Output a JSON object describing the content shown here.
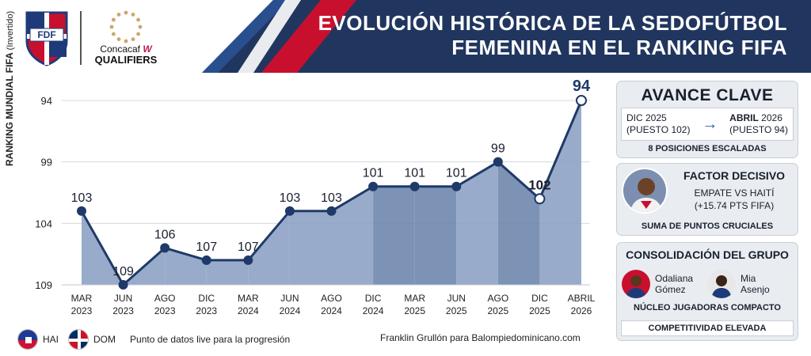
{
  "header": {
    "title_line1": "EVOLUCIÓN HISTÓRICA DE LA SEDOFÚTBOL",
    "title_line2": "FEMENINA EN EL RANKING FIFA",
    "logo_left_text": "FDF",
    "logo_right_name": "Concacaf",
    "logo_right_w": "W",
    "logo_right_sub": "QUALIFIERS"
  },
  "chart_data": {
    "type": "area",
    "ylabel": "RANKING MUNDIAL FIFA",
    "ylabel_note": "(Invertido)",
    "y_inverted": true,
    "ylim": [
      109,
      94
    ],
    "yticks": [
      94,
      99,
      104,
      109
    ],
    "categories": [
      {
        "month": "MAR",
        "year": "2023"
      },
      {
        "month": "JUN",
        "year": "2023"
      },
      {
        "month": "AGO",
        "year": "2023"
      },
      {
        "month": "DIC",
        "year": "2023"
      },
      {
        "month": "MAR",
        "year": "2024"
      },
      {
        "month": "JUN",
        "year": "2024"
      },
      {
        "month": "AGO",
        "year": "2024"
      },
      {
        "month": "DIC",
        "year": "2024"
      },
      {
        "month": "MAR",
        "year": "2025"
      },
      {
        "month": "JUN",
        "year": "2025"
      },
      {
        "month": "AGO",
        "year": "2025"
      },
      {
        "month": "DIC",
        "year": "2025"
      },
      {
        "month": "ABRIL",
        "year": "2026"
      }
    ],
    "values": [
      103,
      109,
      106,
      107,
      107,
      103,
      103,
      101,
      101,
      101,
      99,
      102,
      94
    ],
    "highlight_bold": [
      11,
      12
    ],
    "grid": true
  },
  "legend": {
    "hai_label": "HAI",
    "dom_label": "DOM",
    "note": "Punto de datos live para la progresión"
  },
  "credit": "Franklin Grullón para Balompiedominicano.com",
  "panel_avance": {
    "title": "AVANCE CLAVE",
    "from_line1": "DIC 2025",
    "from_line2": "(PUESTO 102)",
    "to_bold": "ABRIL",
    "to_line1_rest": " 2026",
    "to_line2": "(PUESTO 94)",
    "footer": "8 POSICIONES ESCALADAS"
  },
  "panel_factor": {
    "title": "FACTOR DECISIVO",
    "line1": "EMPATE VS HAITÍ",
    "line2": "(+15.74 PTS FIFA)",
    "footer": "SUMA DE PUNTOS CRUCIALES"
  },
  "panel_grupo": {
    "title": "CONSOLIDACIÓN DEL GRUPO",
    "players": [
      {
        "first": "Odaliana",
        "last": "Gómez"
      },
      {
        "first": "Mia",
        "last": "Asenjo"
      }
    ],
    "subtitle": "NÚCLEO JUGADORAS COMPACTO",
    "footer": "COMPETITIVIDAD ELEVADA"
  }
}
